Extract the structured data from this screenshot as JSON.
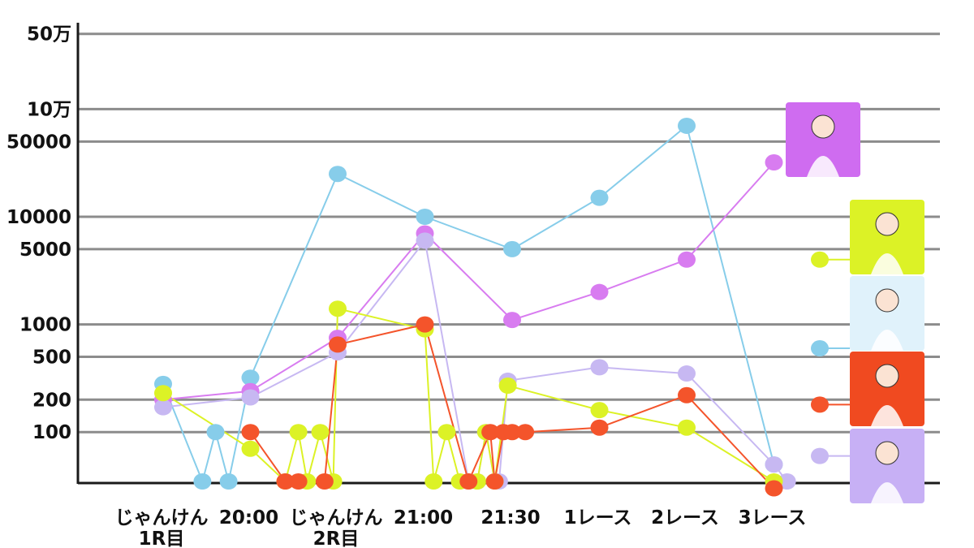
{
  "chart_data": {
    "type": "line",
    "title": "",
    "xlabel": "",
    "ylabel": "",
    "y_scale": "log",
    "y_ticks": [
      {
        "value": 100,
        "label": "100"
      },
      {
        "value": 200,
        "label": "200"
      },
      {
        "value": 500,
        "label": "500"
      },
      {
        "value": 1000,
        "label": "1000"
      },
      {
        "value": 5000,
        "label": "5000"
      },
      {
        "value": 10000,
        "label": "10000"
      },
      {
        "value": 50000,
        "label": "50000"
      },
      {
        "value": 100000,
        "label": "10万"
      },
      {
        "value": 500000,
        "label": "50万"
      }
    ],
    "x_labels": [
      {
        "x": 1,
        "lines": [
          "じゃんけん",
          "1R目"
        ]
      },
      {
        "x": 2,
        "lines": [
          "20:00"
        ]
      },
      {
        "x": 3,
        "lines": [
          "じゃんけん",
          "2R目"
        ]
      },
      {
        "x": 4,
        "lines": [
          "21:00"
        ]
      },
      {
        "x": 5,
        "lines": [
          "21:30"
        ]
      },
      {
        "x": 6,
        "lines": [
          "1レース"
        ]
      },
      {
        "x": 7,
        "lines": [
          "2レース"
        ]
      },
      {
        "x": 8,
        "lines": [
          "3レース"
        ]
      }
    ],
    "grid": true,
    "series": [
      {
        "color": "#87cdea",
        "avatar_color": "#e0f2fb",
        "avatar_icon": "rabbit-girl-icon",
        "legend_value": 600,
        "points": [
          [
            1,
            280
          ],
          [
            1.45,
            0
          ],
          [
            1.6,
            100
          ],
          [
            1.75,
            0
          ],
          [
            2,
            320
          ],
          [
            3,
            25000
          ],
          [
            4,
            10000
          ],
          [
            5,
            5000
          ],
          [
            6,
            15000
          ],
          [
            7,
            70000
          ],
          [
            8,
            50
          ]
        ]
      },
      {
        "color": "#d87cf0",
        "avatar_color": "#cf6cf0",
        "avatar_icon": "cat-girl-icon",
        "legend_value": null,
        "points": [
          [
            1,
            200
          ],
          [
            2,
            240
          ],
          [
            3,
            750
          ],
          [
            4,
            7000
          ],
          [
            5,
            1100
          ],
          [
            6,
            2000
          ],
          [
            7,
            4000
          ],
          [
            8,
            32000
          ]
        ]
      },
      {
        "color": "#c7b8f2",
        "avatar_color": "#c7b0f5",
        "avatar_icon": "horned-girl-icon",
        "legend_value": 60,
        "points": [
          [
            1,
            170
          ],
          [
            2,
            210
          ],
          [
            3,
            550
          ],
          [
            4,
            6000
          ],
          [
            4.5,
            0
          ],
          [
            4.6,
            0
          ],
          [
            4.7,
            100
          ],
          [
            4.8,
            0
          ],
          [
            4.85,
            0
          ],
          [
            4.95,
            300
          ],
          [
            6,
            400
          ],
          [
            7,
            350
          ],
          [
            8,
            50
          ],
          [
            8.15,
            0
          ]
        ]
      },
      {
        "color": "#dcf226",
        "avatar_color": "#dcf226",
        "avatar_icon": "cap-girl-icon",
        "legend_value": 4000,
        "points": [
          [
            1,
            230
          ],
          [
            2,
            70
          ],
          [
            2.4,
            0
          ],
          [
            2.55,
            100
          ],
          [
            2.65,
            0
          ],
          [
            2.8,
            100
          ],
          [
            2.95,
            0
          ],
          [
            3,
            1400
          ],
          [
            4,
            900
          ],
          [
            4.1,
            0
          ],
          [
            4.25,
            100
          ],
          [
            4.4,
            0
          ],
          [
            4.6,
            0
          ],
          [
            4.7,
            100
          ],
          [
            4.8,
            0
          ],
          [
            4.95,
            270
          ],
          [
            6,
            160
          ],
          [
            7,
            110
          ],
          [
            8,
            0
          ]
        ]
      },
      {
        "color": "#f4542b",
        "avatar_color": "#f04a20",
        "avatar_icon": "elf-girl-icon",
        "legend_value": 180,
        "points": [
          [
            2,
            100
          ],
          [
            2.4,
            0
          ],
          [
            2.55,
            0
          ],
          [
            2.85,
            0
          ],
          [
            3,
            650
          ],
          [
            4,
            1000
          ],
          [
            4.5,
            0
          ],
          [
            4.75,
            100
          ],
          [
            4.8,
            0
          ],
          [
            4.9,
            100
          ],
          [
            5,
            100
          ],
          [
            5.15,
            100
          ],
          [
            6,
            110
          ],
          [
            7,
            220
          ],
          [
            8,
            30
          ]
        ]
      }
    ]
  }
}
